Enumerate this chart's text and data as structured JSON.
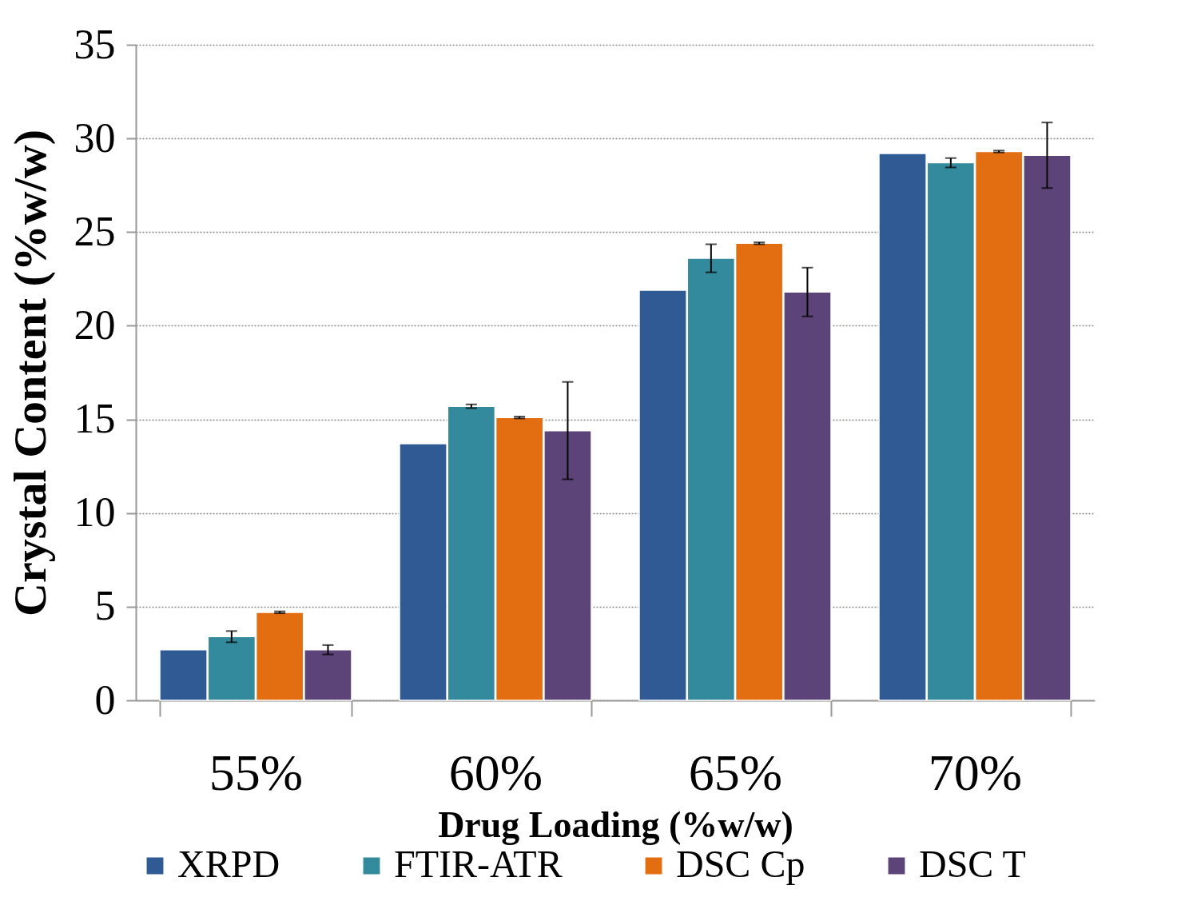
{
  "chart_data": {
    "type": "bar",
    "xlabel": "Drug Loading (%w/w)",
    "ylabel": "Crystal Content (%w/w)",
    "categories": [
      "55%",
      "60%",
      "65%",
      "70%"
    ],
    "series": [
      {
        "name": "XRPD",
        "color": "#2f5a94",
        "values": [
          2.7,
          13.7,
          21.9,
          29.2
        ]
      },
      {
        "name": "FTIR-ATR",
        "color": "#338a9c",
        "values": [
          3.4,
          15.7,
          23.6,
          28.7
        ],
        "errors": [
          0.3,
          0.1,
          0.75,
          0.25
        ]
      },
      {
        "name": "DSC Cp",
        "color": "#e36e12",
        "values": [
          4.7,
          15.1,
          24.4,
          29.3
        ],
        "errors": [
          0.05,
          0.05,
          0.05,
          0.05
        ]
      },
      {
        "name": "DSC T",
        "color": "#5d4478",
        "values": [
          2.7,
          14.4,
          21.8,
          29.1
        ],
        "errors": [
          0.25,
          2.6,
          1.3,
          1.75
        ]
      }
    ],
    "ylim": [
      0,
      35
    ],
    "yticks": [
      0,
      5,
      10,
      15,
      20,
      25,
      30,
      35
    ],
    "grid": "y",
    "legend": "bottom"
  }
}
